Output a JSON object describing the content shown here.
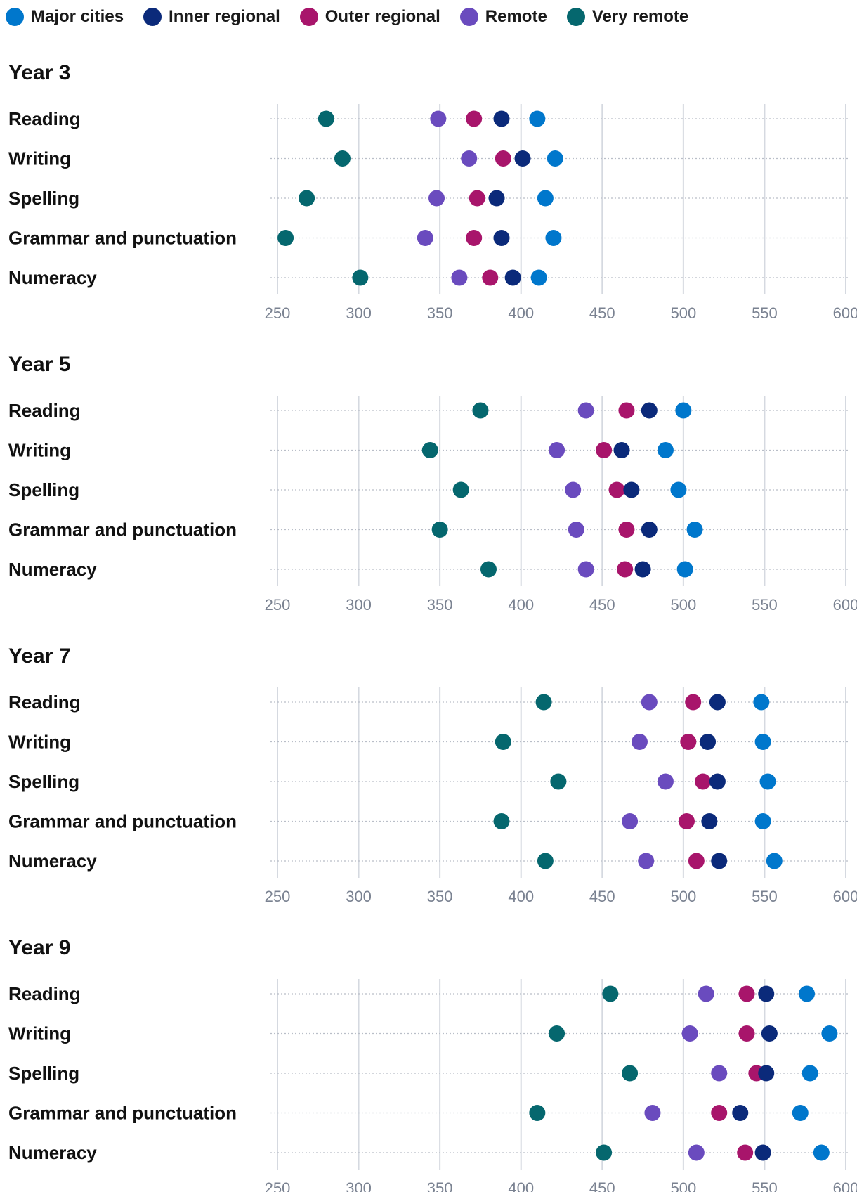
{
  "legend": [
    {
      "name": "Major cities",
      "color": "#0077CC"
    },
    {
      "name": "Inner regional",
      "color": "#0B2A7A"
    },
    {
      "name": "Outer regional",
      "color": "#A8156B"
    },
    {
      "name": "Remote",
      "color": "#6A4BBE"
    },
    {
      "name": "Very remote",
      "color": "#05676E"
    }
  ],
  "chart_data": [
    {
      "type": "scatter",
      "title": "Year 3",
      "categories": [
        "Reading",
        "Writing",
        "Spelling",
        "Grammar and punctuation",
        "Numeracy"
      ],
      "xlim": [
        250,
        600
      ],
      "xticks": [
        250,
        300,
        350,
        400,
        450,
        500,
        550,
        600
      ],
      "series": [
        {
          "name": "Major cities",
          "values": [
            410,
            421,
            415,
            420,
            411
          ]
        },
        {
          "name": "Inner regional",
          "values": [
            388,
            401,
            385,
            388,
            395
          ]
        },
        {
          "name": "Outer regional",
          "values": [
            371,
            389,
            373,
            371,
            381
          ]
        },
        {
          "name": "Remote",
          "values": [
            349,
            368,
            348,
            341,
            362
          ]
        },
        {
          "name": "Very remote",
          "values": [
            280,
            290,
            268,
            255,
            301
          ]
        }
      ]
    },
    {
      "type": "scatter",
      "title": "Year 5",
      "categories": [
        "Reading",
        "Writing",
        "Spelling",
        "Grammar and punctuation",
        "Numeracy"
      ],
      "xlim": [
        250,
        600
      ],
      "xticks": [
        250,
        300,
        350,
        400,
        450,
        500,
        550,
        600
      ],
      "series": [
        {
          "name": "Major cities",
          "values": [
            500,
            489,
            497,
            507,
            501
          ]
        },
        {
          "name": "Inner regional",
          "values": [
            479,
            462,
            468,
            479,
            475
          ]
        },
        {
          "name": "Outer regional",
          "values": [
            465,
            451,
            459,
            465,
            464
          ]
        },
        {
          "name": "Remote",
          "values": [
            440,
            422,
            432,
            434,
            440
          ]
        },
        {
          "name": "Very remote",
          "values": [
            375,
            344,
            363,
            350,
            380
          ]
        }
      ]
    },
    {
      "type": "scatter",
      "title": "Year 7",
      "categories": [
        "Reading",
        "Writing",
        "Spelling",
        "Grammar and punctuation",
        "Numeracy"
      ],
      "xlim": [
        250,
        600
      ],
      "xticks": [
        250,
        300,
        350,
        400,
        450,
        500,
        550,
        600
      ],
      "series": [
        {
          "name": "Major cities",
          "values": [
            548,
            549,
            552,
            549,
            556
          ]
        },
        {
          "name": "Inner regional",
          "values": [
            521,
            515,
            521,
            516,
            522
          ]
        },
        {
          "name": "Outer regional",
          "values": [
            506,
            503,
            512,
            502,
            508
          ]
        },
        {
          "name": "Remote",
          "values": [
            479,
            473,
            489,
            467,
            477
          ]
        },
        {
          "name": "Very remote",
          "values": [
            414,
            389,
            423,
            388,
            415
          ]
        }
      ]
    },
    {
      "type": "scatter",
      "title": "Year 9",
      "categories": [
        "Reading",
        "Writing",
        "Spelling",
        "Grammar and punctuation",
        "Numeracy"
      ],
      "xlim": [
        250,
        600
      ],
      "xticks": [
        250,
        300,
        350,
        400,
        450,
        500,
        550,
        600
      ],
      "series": [
        {
          "name": "Major cities",
          "values": [
            576,
            590,
            578,
            572,
            585
          ]
        },
        {
          "name": "Inner regional",
          "values": [
            551,
            553,
            551,
            535,
            549
          ]
        },
        {
          "name": "Outer regional",
          "values": [
            539,
            539,
            545,
            522,
            538
          ]
        },
        {
          "name": "Remote",
          "values": [
            514,
            504,
            522,
            481,
            508
          ]
        },
        {
          "name": "Very remote",
          "values": [
            455,
            422,
            467,
            410,
            451
          ]
        }
      ]
    }
  ]
}
